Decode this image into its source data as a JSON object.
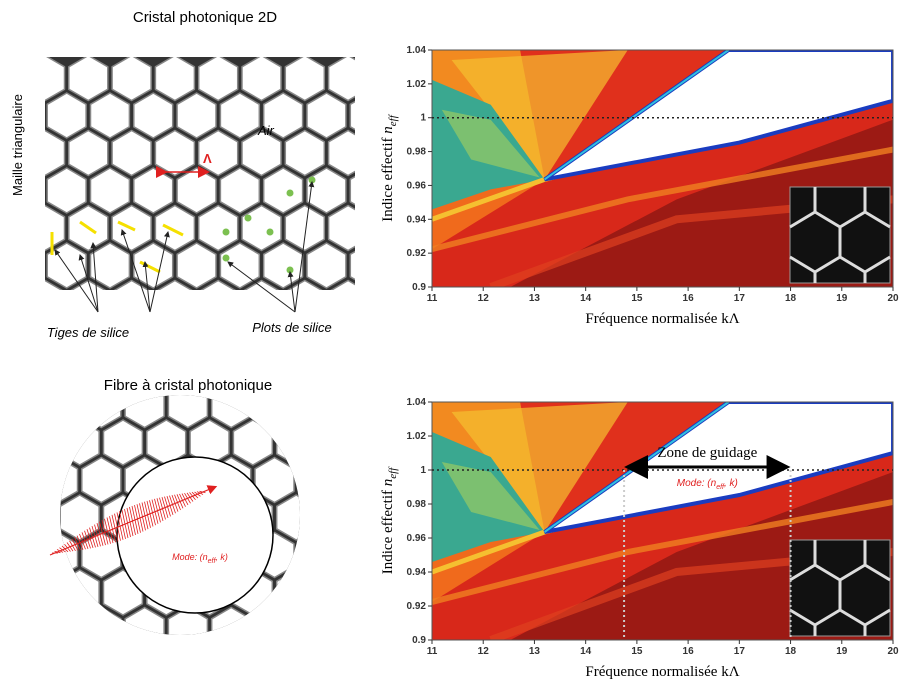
{
  "top_left": {
    "title": "Cristal photonique 2D",
    "side_label": "Maille triangulaire",
    "air_label": "Air",
    "lattice_label": "Λ",
    "rods_label": "Tiges de silice",
    "nodes_label": "Plots de silice"
  },
  "bottom_left": {
    "title": "Fibre à cristal photonique",
    "mode_label": [
      "Mode: (",
      "n",
      "eff",
      ", k)"
    ]
  },
  "chart_data": [
    {
      "type": "heatmap",
      "xlim": [
        11,
        20
      ],
      "ylim": [
        0.9,
        1.04
      ],
      "xticks": [
        11,
        12,
        13,
        14,
        15,
        16,
        17,
        18,
        19,
        20
      ],
      "yticks": [
        0.9,
        0.92,
        0.94,
        0.96,
        0.98,
        1,
        1.02,
        1.04
      ],
      "x_label": "Fréquence normalisée kΛ",
      "y_label": [
        "Indice effectif ",
        "n",
        "eff"
      ],
      "reference_line": 1
    },
    {
      "type": "heatmap",
      "xlim": [
        11,
        20
      ],
      "ylim": [
        0.9,
        1.04
      ],
      "xticks": [
        11,
        12,
        13,
        14,
        15,
        16,
        17,
        18,
        19,
        20
      ],
      "yticks": [
        0.9,
        0.92,
        0.94,
        0.96,
        0.98,
        1,
        1.02,
        1.04
      ],
      "x_label": "Fréquence normalisée kΛ",
      "y_label": [
        "Indice effectif ",
        "n",
        "eff"
      ],
      "reference_line": 1,
      "guide_range": [
        14.75,
        18
      ],
      "guide_label": "Zone de guidage",
      "mode_label": [
        "Mode: (",
        "n",
        "eff",
        ", k)"
      ]
    }
  ]
}
